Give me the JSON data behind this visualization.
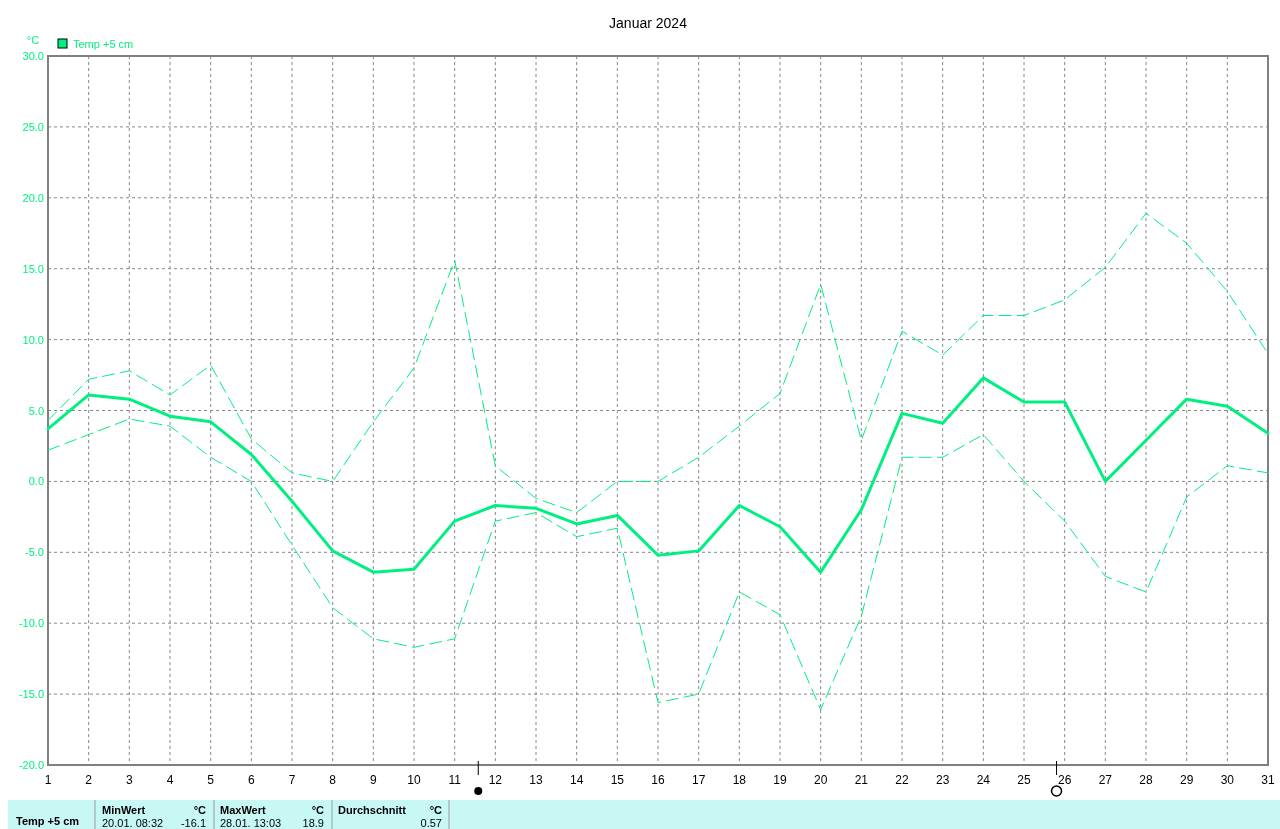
{
  "chart_data": {
    "type": "line",
    "title": "Januar 2024",
    "ylabel": "°C",
    "x": [
      1,
      2,
      3,
      4,
      5,
      6,
      7,
      8,
      9,
      10,
      11,
      12,
      13,
      14,
      15,
      16,
      17,
      18,
      19,
      20,
      21,
      22,
      23,
      24,
      25,
      26,
      27,
      28,
      29,
      30,
      31
    ],
    "xlim": [
      1,
      31
    ],
    "xticks": [
      1,
      2,
      3,
      4,
      5,
      6,
      7,
      8,
      9,
      10,
      11,
      12,
      13,
      14,
      15,
      16,
      17,
      18,
      19,
      20,
      21,
      22,
      23,
      24,
      25,
      26,
      27,
      28,
      29,
      30,
      31
    ],
    "ylim": [
      -20,
      30
    ],
    "yticks": [
      {
        "value": -20,
        "label": "-20.0"
      },
      {
        "value": -15,
        "label": "-15.0"
      },
      {
        "value": -10,
        "label": "-10.0"
      },
      {
        "value": -5,
        "label": "-5.0"
      },
      {
        "value": 0,
        "label": "0.0"
      },
      {
        "value": 5,
        "label": "5.0"
      },
      {
        "value": 10,
        "label": "10.0"
      },
      {
        "value": 15,
        "label": "15.0"
      },
      {
        "value": 20,
        "label": "20.0"
      },
      {
        "value": 25,
        "label": "25.0"
      },
      {
        "value": 30,
        "label": "30.0"
      }
    ],
    "grid": true,
    "legend": "top left",
    "series": [
      {
        "name": "Temp +5 cm",
        "color": "#00f080",
        "line_style": "solid",
        "values": [
          3.7,
          6.1,
          5.8,
          4.6,
          4.2,
          1.9,
          -1.4,
          -4.9,
          -6.4,
          -6.2,
          -2.8,
          -1.7,
          -1.9,
          -3.0,
          -2.4,
          -5.2,
          -4.9,
          -1.7,
          -3.2,
          -6.4,
          -2.0,
          4.8,
          4.1,
          7.3,
          5.6,
          5.6,
          0.0,
          2.9,
          5.8,
          5.3,
          3.4
        ]
      },
      {
        "color": "#00f080",
        "line_style": "dashed",
        "values": [
          4.3,
          7.2,
          7.8,
          6.1,
          8.2,
          3.0,
          0.6,
          0.0,
          4.2,
          8.0,
          15.6,
          1.1,
          -1.2,
          -2.2,
          0.0,
          0.0,
          1.7,
          3.9,
          6.2,
          13.9,
          2.9,
          10.6,
          8.9,
          11.7,
          11.7,
          12.8,
          15.1,
          18.9,
          16.8,
          13.4,
          9.0
        ]
      },
      {
        "color": "#00f080",
        "line_style": "dashed",
        "values": [
          2.2,
          3.3,
          4.4,
          3.9,
          1.7,
          0.0,
          -4.5,
          -8.9,
          -11.1,
          -11.7,
          -11.1,
          -2.8,
          -2.2,
          -3.9,
          -3.3,
          -15.6,
          -15.0,
          -7.8,
          -9.4,
          -16.1,
          -9.5,
          1.7,
          1.7,
          3.3,
          0.0,
          -2.8,
          -6.7,
          -7.8,
          -1.1,
          1.1,
          0.6
        ]
      }
    ],
    "annotations": [
      "Temp +5 cm",
      "MinWert",
      "°C",
      "20.01.  08:32",
      "-16.1",
      "MaxWert",
      "°C",
      "28.01.  13:03",
      "18.9",
      "Durchschnitt",
      "°C",
      "0.57"
    ]
  }
}
